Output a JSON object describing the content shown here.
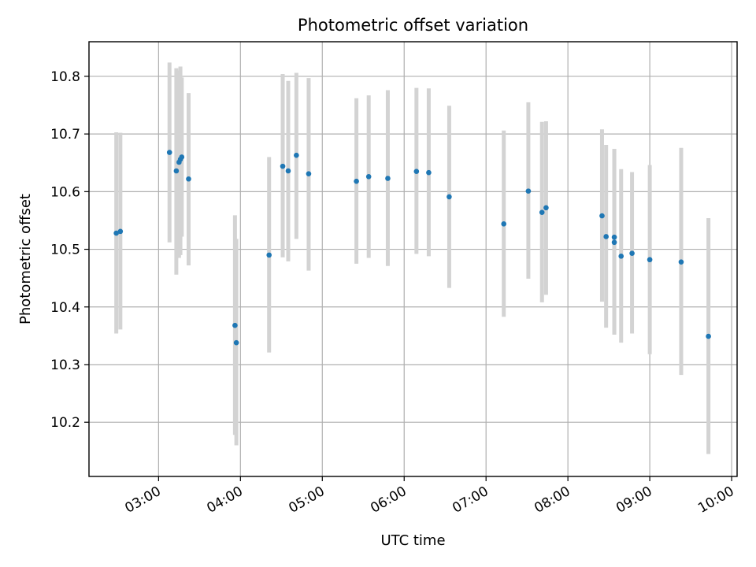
{
  "chart_data": {
    "type": "scatter",
    "title": "Photometric offset variation",
    "xlabel": "UTC time",
    "ylabel": "Photometric offset",
    "x_ticks": [
      "03:00",
      "04:00",
      "05:00",
      "06:00",
      "07:00",
      "08:00",
      "09:00",
      "10:00"
    ],
    "y_ticks": [
      "10.2",
      "10.3",
      "10.4",
      "10.5",
      "10.6",
      "10.7",
      "10.8"
    ],
    "xlim": [
      "02:09",
      "10:04"
    ],
    "ylim": [
      10.106,
      10.86
    ],
    "grid": true,
    "colors": {
      "point": "#1f77b4",
      "errorbar": "#d3d3d3"
    },
    "series": [
      {
        "x": [
          "02:29",
          "02:32",
          "03:08",
          "03:13",
          "03:15",
          "03:16",
          "03:17",
          "03:22",
          "03:56",
          "03:57",
          "04:21",
          "04:31",
          "04:35",
          "04:41",
          "04:50",
          "05:25",
          "05:34",
          "05:48",
          "06:09",
          "06:18",
          "06:33",
          "07:13",
          "07:31",
          "07:41",
          "07:44",
          "08:25",
          "08:28",
          "08:34",
          "08:34",
          "08:39",
          "08:47",
          "09:00",
          "09:23",
          "09:43"
        ],
        "y": [
          10.528,
          10.531,
          10.668,
          10.636,
          10.651,
          10.656,
          10.66,
          10.622,
          10.368,
          10.338,
          10.49,
          10.644,
          10.636,
          10.663,
          10.631,
          10.618,
          10.626,
          10.623,
          10.635,
          10.633,
          10.591,
          10.544,
          10.601,
          10.564,
          10.572,
          10.558,
          10.522,
          10.521,
          10.512,
          10.488,
          10.493,
          10.482,
          10.478,
          10.349
        ],
        "err_low": [
          10.354,
          10.361,
          10.512,
          10.456,
          10.485,
          10.49,
          10.522,
          10.472,
          10.178,
          10.16,
          10.321,
          10.486,
          10.479,
          10.518,
          10.463,
          10.475,
          10.485,
          10.471,
          10.492,
          10.488,
          10.433,
          10.383,
          10.449,
          10.408,
          10.421,
          10.409,
          10.364,
          10.352,
          10.352,
          10.338,
          10.354,
          10.318,
          10.282,
          10.145
        ],
        "err_high": [
          10.703,
          10.702,
          10.824,
          10.814,
          10.81,
          10.817,
          10.798,
          10.771,
          10.559,
          10.518,
          10.66,
          10.804,
          10.792,
          10.806,
          10.797,
          10.762,
          10.767,
          10.776,
          10.78,
          10.779,
          10.749,
          10.706,
          10.755,
          10.721,
          10.722,
          10.708,
          10.681,
          10.674,
          10.674,
          10.639,
          10.634,
          10.646,
          10.676,
          10.554
        ]
      }
    ]
  }
}
